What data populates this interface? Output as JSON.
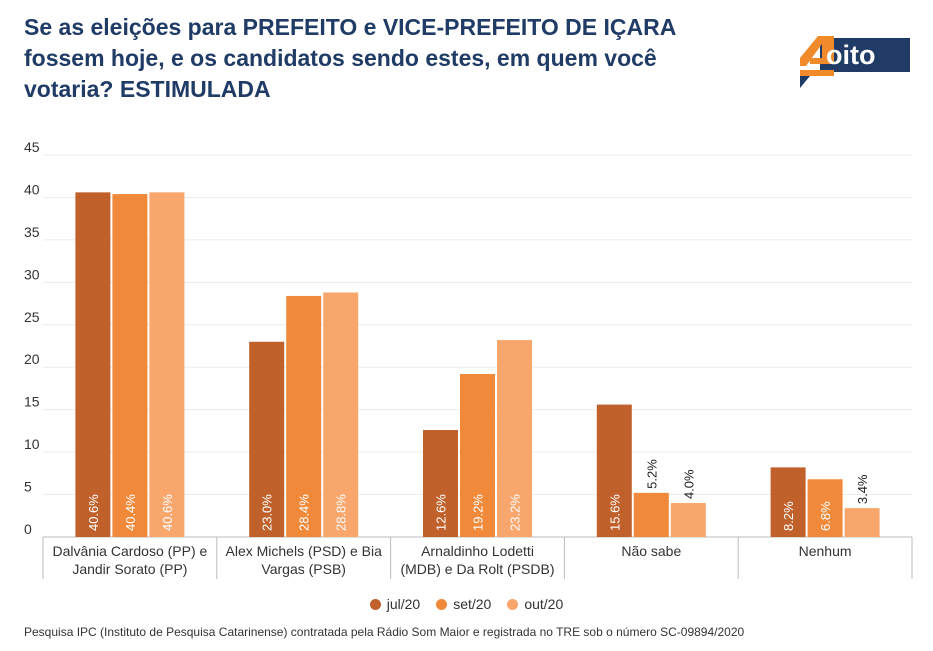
{
  "title": "Se as eleições para PREFEITO e VICE-PREFEITO DE IÇARA fossem hoje, e os candidatos sendo estes, em quem você votaria? ESTIMULADA",
  "logo": {
    "text": "oito",
    "digit": "4",
    "colors": {
      "navy": "#1f3b66",
      "orange": "#f08a2a"
    }
  },
  "footnote": "Pesquisa IPC (Instituto de Pesquisa Catarinense) contratada pela Rádio Som Maior e registrada no TRE sob o número SC-09894/2020",
  "chart_data": {
    "type": "bar",
    "categories": [
      [
        "Dalvânia Cardoso (PP) e",
        "Jandir Sorato (PP)"
      ],
      [
        "Alex Michels (PSD) e Bia",
        "Vargas (PSB)"
      ],
      [
        "Arnaldinho Lodetti",
        "(MDB) e Da Rolt (PSDB)"
      ],
      [
        "Não sabe"
      ],
      [
        "Nenhum"
      ]
    ],
    "series": [
      {
        "name": "jul/20",
        "color": "#c0612b",
        "values": [
          40.6,
          23.0,
          12.6,
          15.6,
          8.2
        ],
        "labels": [
          "40.6%",
          "23.0%",
          "12.6%",
          "15.6%",
          "8.2%"
        ]
      },
      {
        "name": "set/20",
        "color": "#f08a3a",
        "values": [
          40.4,
          28.4,
          19.2,
          5.2,
          6.8
        ],
        "labels": [
          "40.4%",
          "28.4%",
          "19.2%",
          "5.2%",
          "6.8%"
        ]
      },
      {
        "name": "out/20",
        "color": "#f9a66c",
        "values": [
          40.6,
          28.8,
          23.2,
          4.0,
          3.4
        ],
        "labels": [
          "40.6%",
          "28.8%",
          "23.2%",
          "4.0%",
          "3.4%"
        ]
      }
    ],
    "y_ticks": [
      "0",
      "5",
      "10",
      "15",
      "20",
      "25",
      "30",
      "35",
      "40",
      "45"
    ],
    "ylim": [
      0,
      45
    ],
    "grid": true,
    "legend_position": "bottom"
  }
}
